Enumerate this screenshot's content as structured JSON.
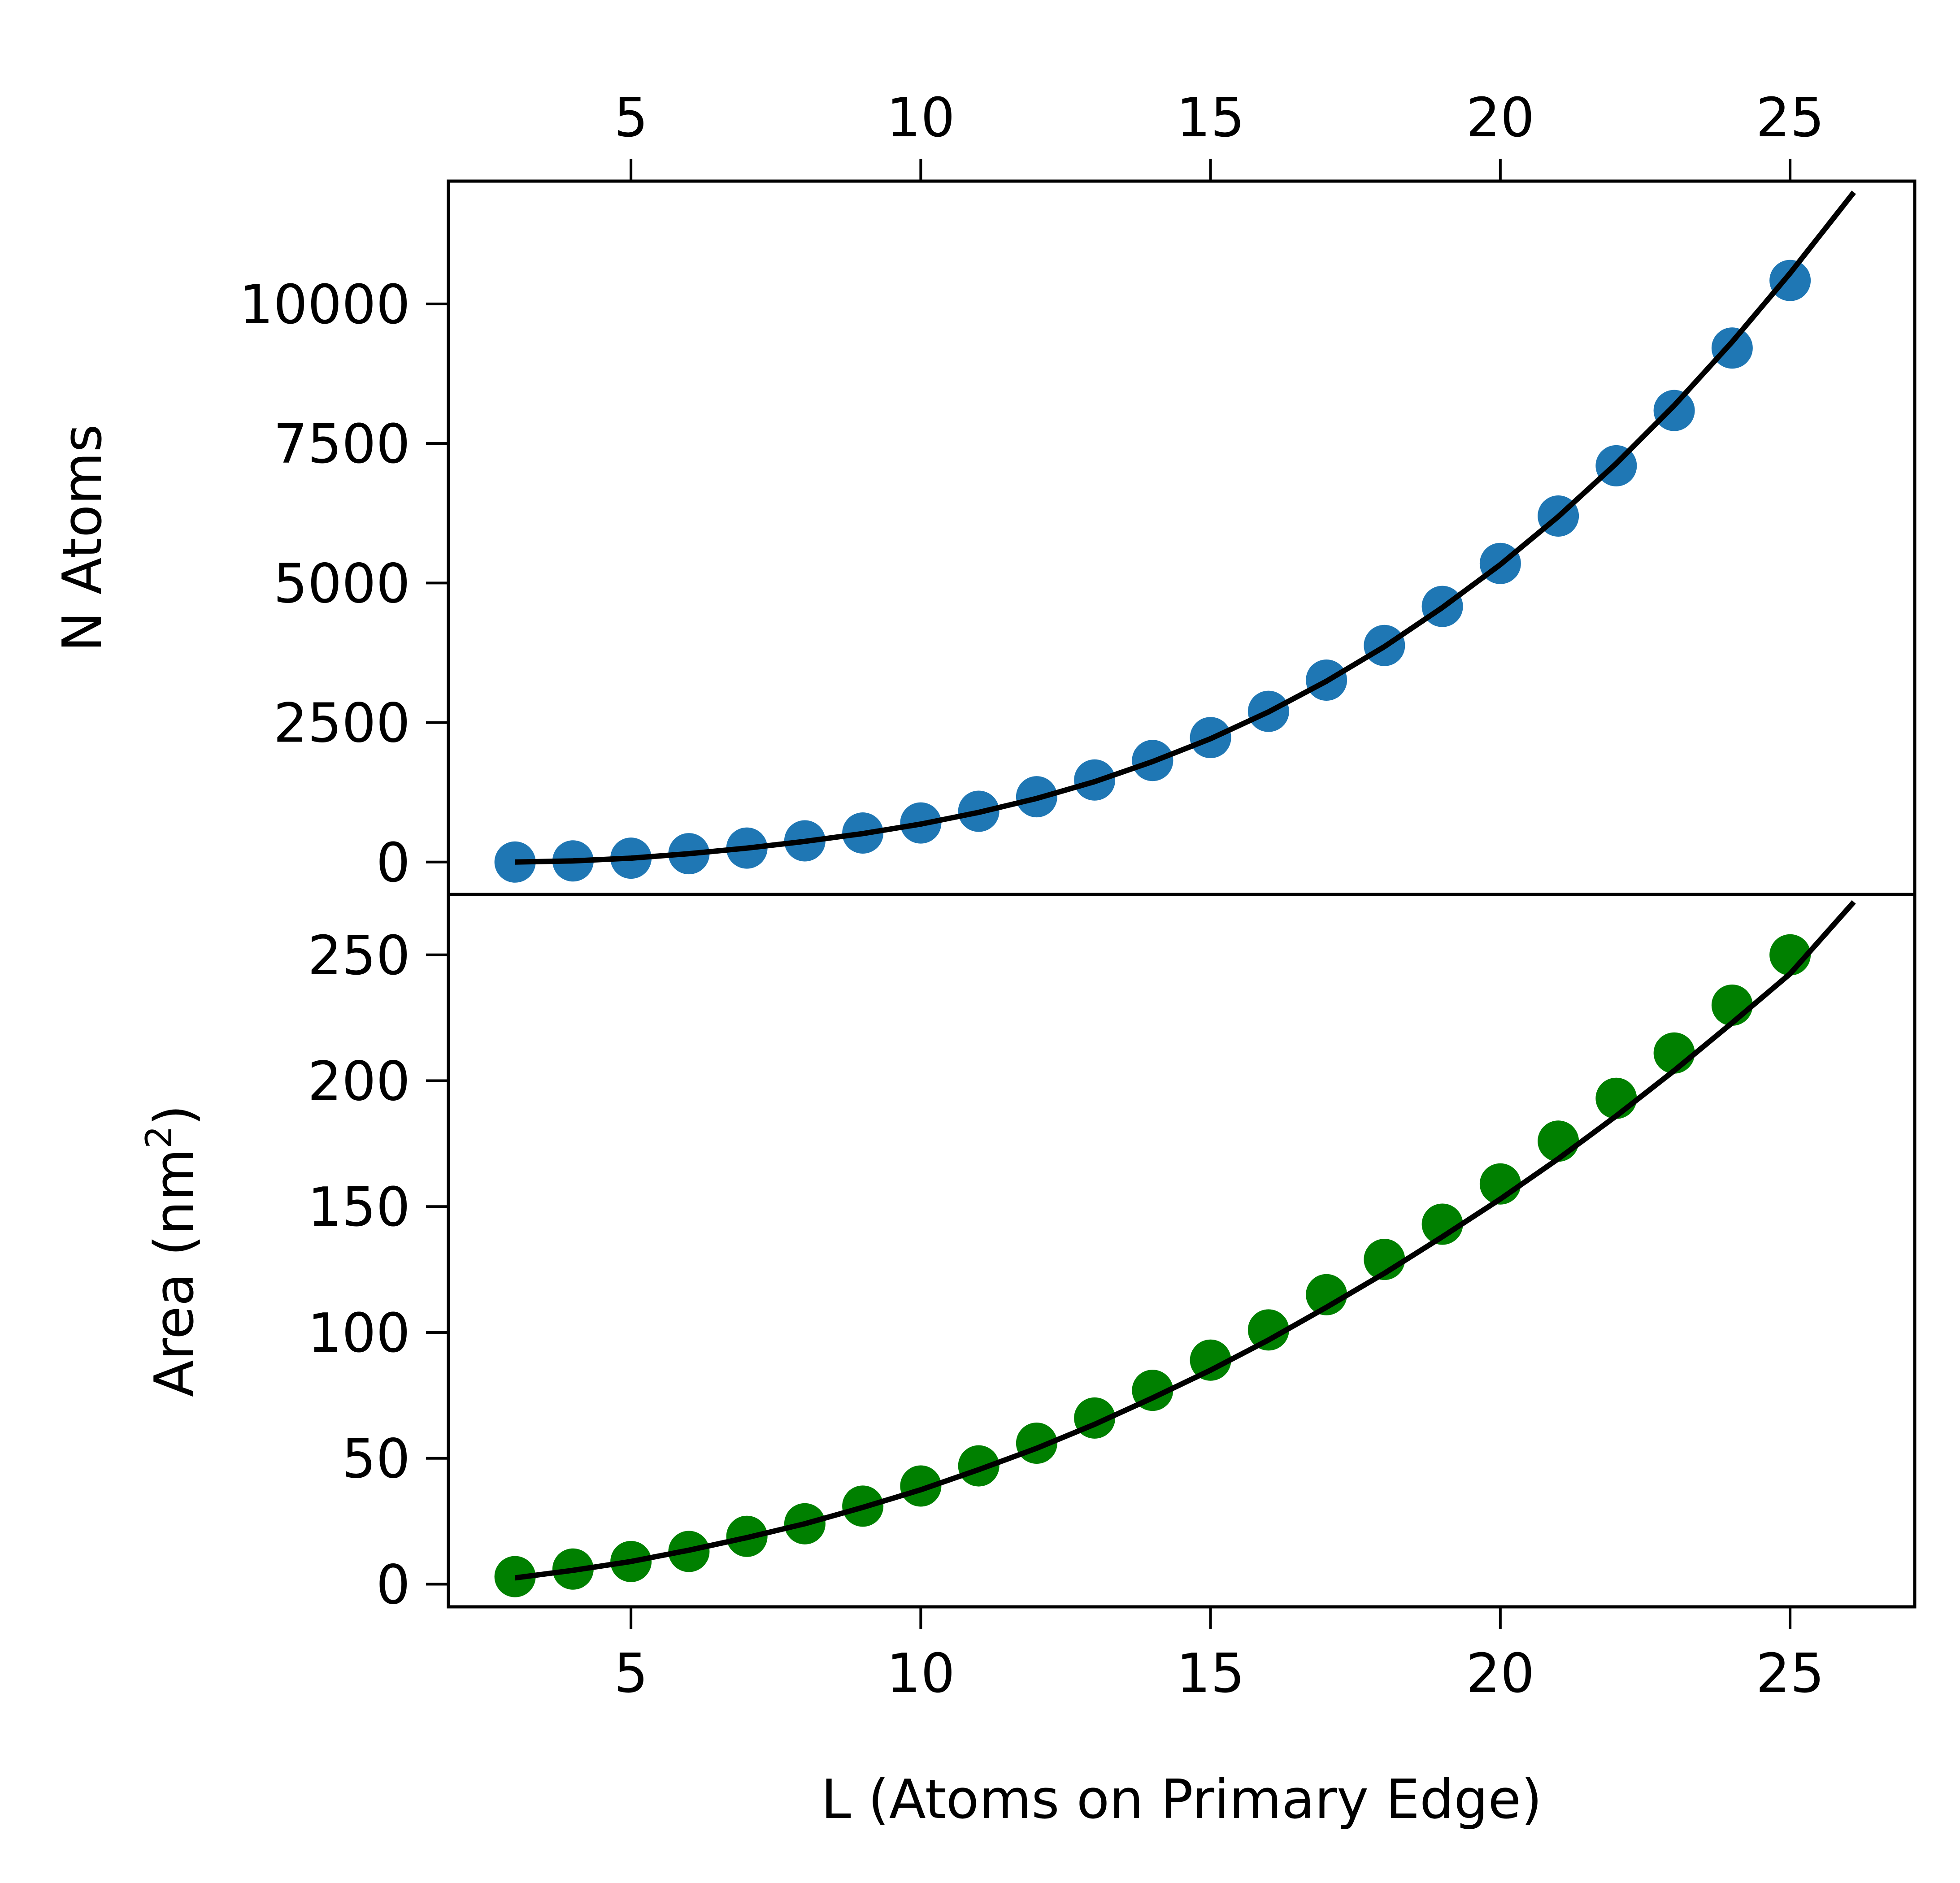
{
  "chart_data": [
    {
      "type": "scatter",
      "panel": "top",
      "ylabel": "N Atoms",
      "xlim": [
        1.85,
        27.15
      ],
      "ylim": [
        -580,
        12200
      ],
      "x_ticks": [
        5,
        10,
        15,
        20,
        25
      ],
      "x_tick_labels": [
        "5",
        "10",
        "15",
        "20",
        "25"
      ],
      "x_ticks_position": "top",
      "y_ticks": [
        0,
        2500,
        5000,
        7500,
        10000
      ],
      "y_tick_labels": [
        "0",
        "2500",
        "5000",
        "7500",
        "10000"
      ],
      "grid": false,
      "series": [
        {
          "kind": "points",
          "color": "#1f77b4",
          "x": [
            3,
            4,
            5,
            6,
            7,
            8,
            9,
            10,
            11,
            12,
            13,
            14,
            15,
            16,
            17,
            18,
            19,
            20,
            21,
            22,
            23,
            24,
            25
          ],
          "y": [
            0,
            20,
            70,
            150,
            250,
            380,
            520,
            700,
            910,
            1170,
            1470,
            1820,
            2230,
            2700,
            3260,
            3880,
            4580,
            5350,
            6200,
            7100,
            8090,
            9210,
            10420
          ]
        },
        {
          "kind": "fit-curve",
          "color": "#000000",
          "x": [
            3,
            4,
            5,
            6,
            7,
            8,
            9,
            10,
            11,
            12,
            13,
            14,
            15,
            16,
            17,
            18,
            19,
            20,
            21,
            22,
            23,
            24,
            25,
            26.1
          ],
          "y": [
            0,
            20,
            70,
            150,
            250,
            370,
            510,
            680,
            890,
            1140,
            1440,
            1800,
            2210,
            2690,
            3240,
            3860,
            4560,
            5330,
            6190,
            7140,
            8180,
            9320,
            10550,
            12000
          ]
        }
      ]
    },
    {
      "type": "scatter",
      "panel": "bottom",
      "xlabel": "L (Atoms on Primary Edge)",
      "ylabel": "Area (nm",
      "ylabel_sup": "2",
      "ylabel_end": ")",
      "xlim": [
        1.85,
        27.15
      ],
      "ylim": [
        -9,
        274
      ],
      "x_ticks": [
        5,
        10,
        15,
        20,
        25
      ],
      "x_tick_labels": [
        "5",
        "10",
        "15",
        "20",
        "25"
      ],
      "y_ticks": [
        0,
        50,
        100,
        150,
        200,
        250
      ],
      "y_tick_labels": [
        "0",
        "50",
        "100",
        "150",
        "200",
        "250"
      ],
      "grid": false,
      "series": [
        {
          "kind": "points",
          "color": "#008000",
          "x": [
            3,
            4,
            5,
            6,
            7,
            8,
            9,
            10,
            11,
            12,
            13,
            14,
            15,
            16,
            17,
            18,
            19,
            20,
            21,
            22,
            23,
            24,
            25
          ],
          "y": [
            3,
            6,
            9,
            13,
            19,
            24,
            31,
            39,
            47,
            56,
            66,
            77,
            89,
            101,
            115,
            129,
            143,
            159,
            176,
            193,
            211,
            230,
            250
          ]
        },
        {
          "kind": "fit-curve",
          "color": "#000000",
          "x": [
            3,
            4,
            5,
            6,
            7,
            8,
            9,
            10,
            11,
            12,
            13,
            14,
            15,
            16,
            17,
            18,
            19,
            20,
            21,
            22,
            23,
            24,
            25,
            26.1
          ],
          "y": [
            2.5,
            5.5,
            9,
            13.5,
            18.5,
            24,
            30.5,
            37.5,
            45.5,
            54,
            63.5,
            74,
            85,
            97,
            110,
            123.5,
            138,
            153,
            169,
            186,
            204,
            223,
            242.5,
            271
          ]
        }
      ]
    }
  ]
}
